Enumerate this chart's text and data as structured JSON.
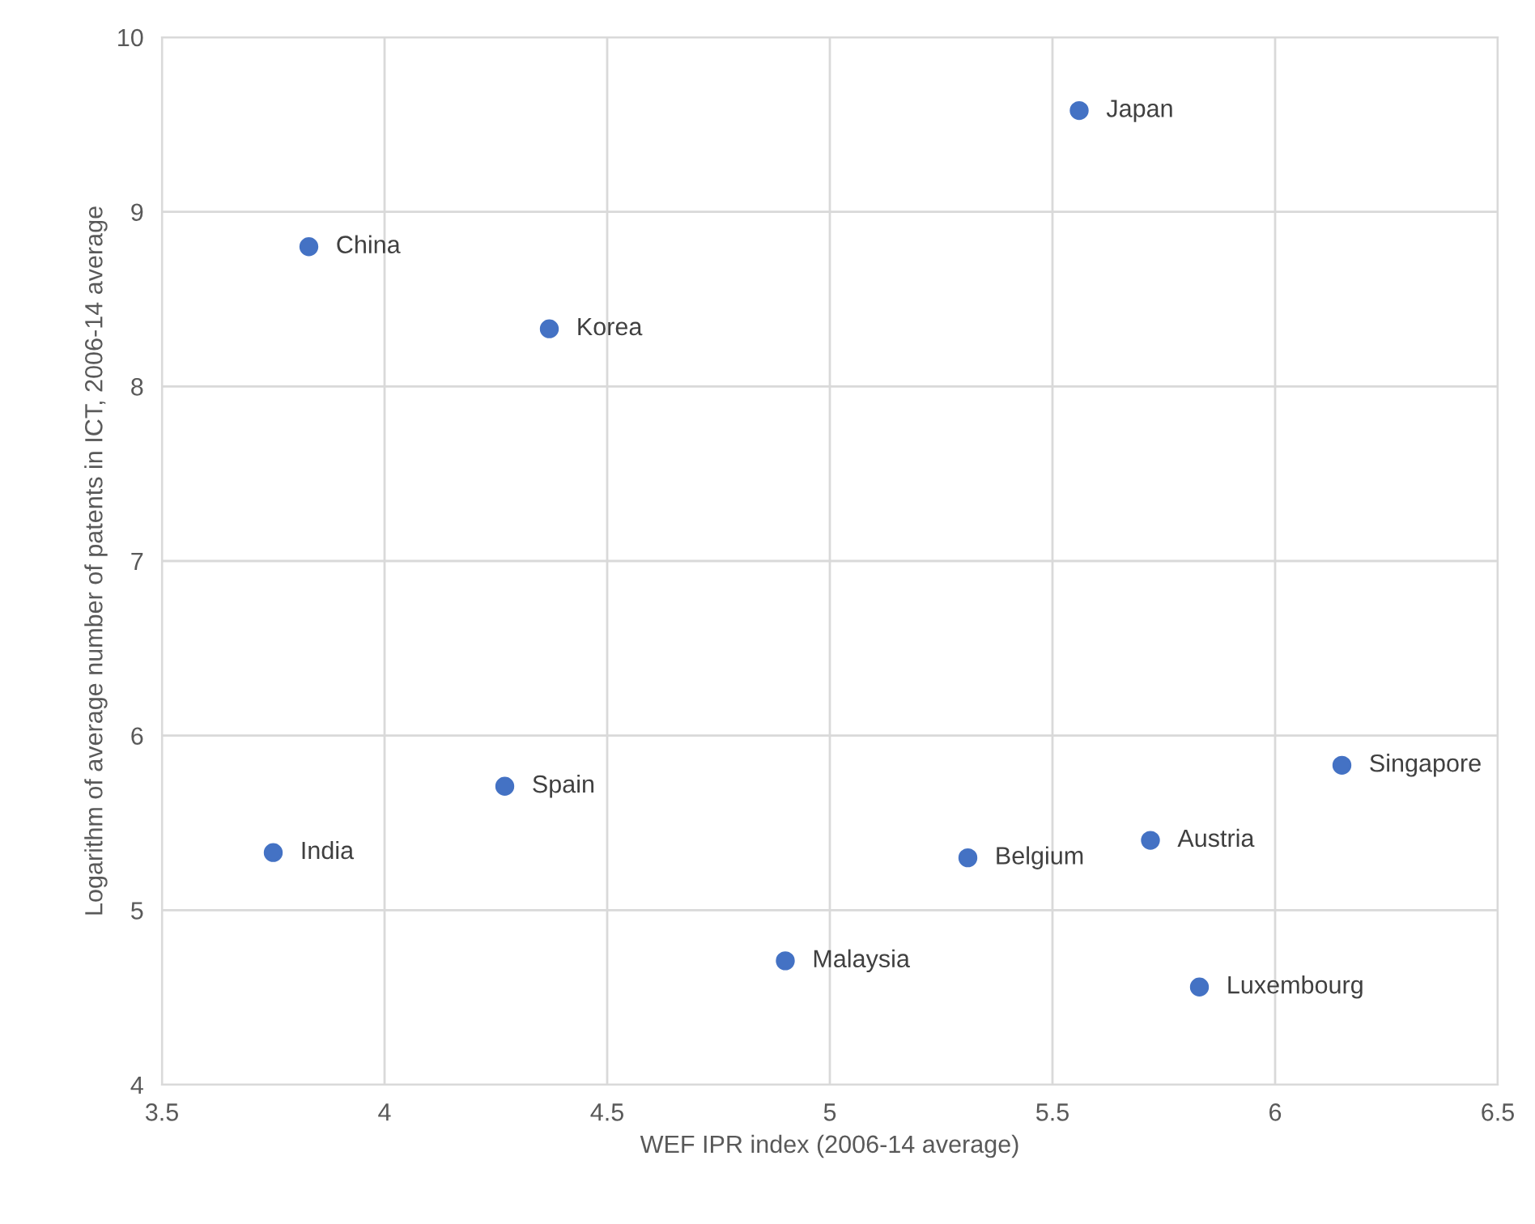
{
  "chart_data": {
    "type": "scatter",
    "xlabel": "WEF IPR index (2006-14 average)",
    "ylabel": "Logarithm of average number of patents in ICT, 2006-14 average",
    "x": [
      3.83,
      4.37,
      5.56,
      6.15,
      4.27,
      3.75,
      5.72,
      5.31,
      4.9,
      5.83
    ],
    "series": [
      {
        "color": "#4472c4",
        "values": [
          8.8,
          8.33,
          9.58,
          5.83,
          5.71,
          5.33,
          5.4,
          5.3,
          4.71,
          4.56
        ]
      }
    ],
    "annotations": [
      {
        "text": "China",
        "x": 3.83,
        "y": 8.8
      },
      {
        "text": "Korea",
        "x": 4.37,
        "y": 8.33
      },
      {
        "text": "Japan",
        "x": 5.56,
        "y": 9.58
      },
      {
        "text": "Singapore",
        "x": 6.15,
        "y": 5.83
      },
      {
        "text": "Spain",
        "x": 4.27,
        "y": 5.71
      },
      {
        "text": "India",
        "x": 3.75,
        "y": 5.33
      },
      {
        "text": "Austria",
        "x": 5.72,
        "y": 5.4
      },
      {
        "text": "Belgium",
        "x": 5.31,
        "y": 5.3
      },
      {
        "text": "Malaysia",
        "x": 4.9,
        "y": 4.71
      },
      {
        "text": "Luxembourg",
        "x": 5.83,
        "y": 4.56
      }
    ],
    "xlim": [
      3.5,
      6.5
    ],
    "ylim": [
      4,
      10
    ],
    "xticks": [
      3.5,
      4,
      4.5,
      5,
      5.5,
      6,
      6.5
    ],
    "yticks": [
      4,
      5,
      6,
      7,
      8,
      9,
      10
    ],
    "grid": true,
    "marker": "circle",
    "legend": false
  }
}
